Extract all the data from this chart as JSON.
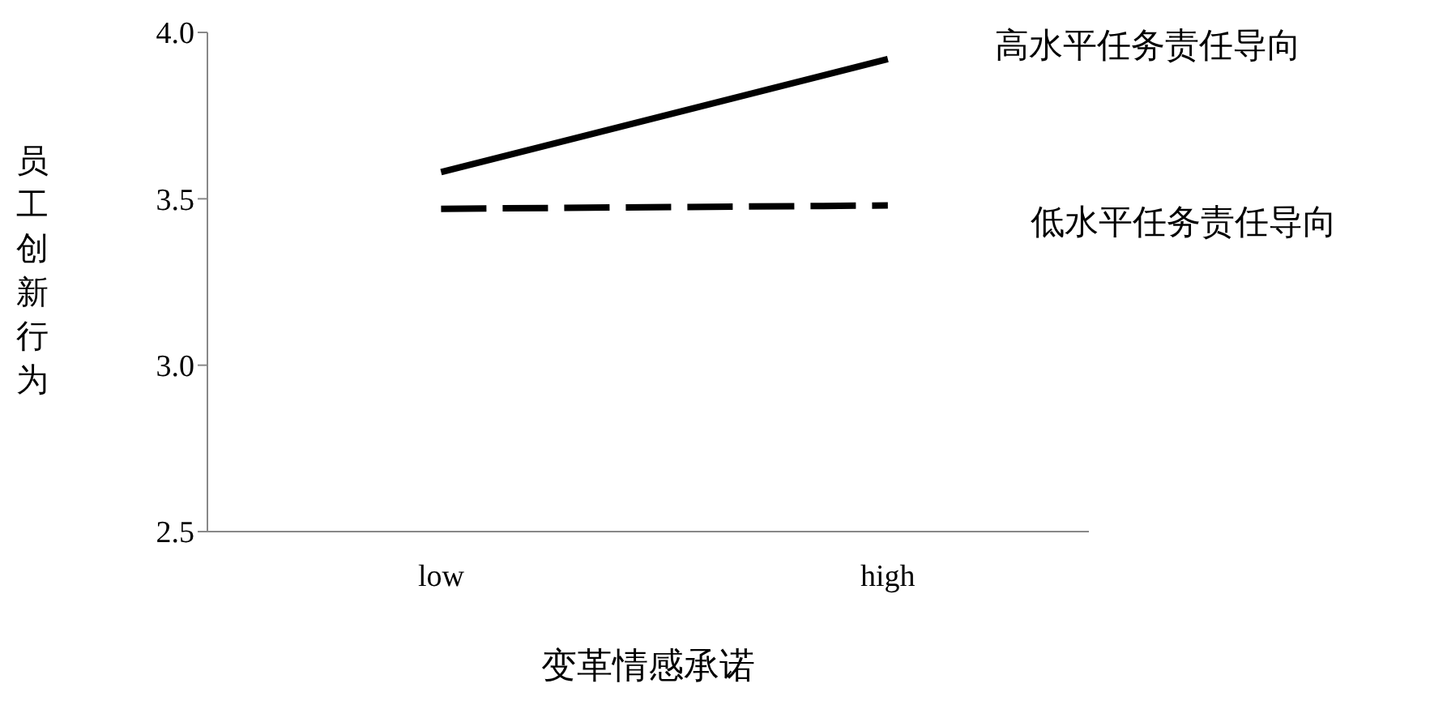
{
  "chart_data": {
    "type": "line",
    "xlabel": "变革情感承诺",
    "ylabel": "员工创新行为",
    "categories": [
      "low",
      "high"
    ],
    "series": [
      {
        "name": "高水平任务责任导向",
        "color": "#000000",
        "line_style": "solid",
        "values": [
          3.58,
          3.92
        ]
      },
      {
        "name": "低水平任务责任导向",
        "color": "#000000",
        "line_style": "dashed",
        "values": [
          3.47,
          3.48
        ]
      }
    ],
    "ylim": [
      2.5,
      4.0
    ],
    "yticks": [
      {
        "value": 2.5,
        "label": "2.5"
      },
      {
        "value": 3.0,
        "label": "3.0"
      },
      {
        "value": 3.5,
        "label": "3.5"
      },
      {
        "value": 4.0,
        "label": "4.0"
      }
    ],
    "grid": false,
    "legend": false,
    "marker": "none"
  }
}
